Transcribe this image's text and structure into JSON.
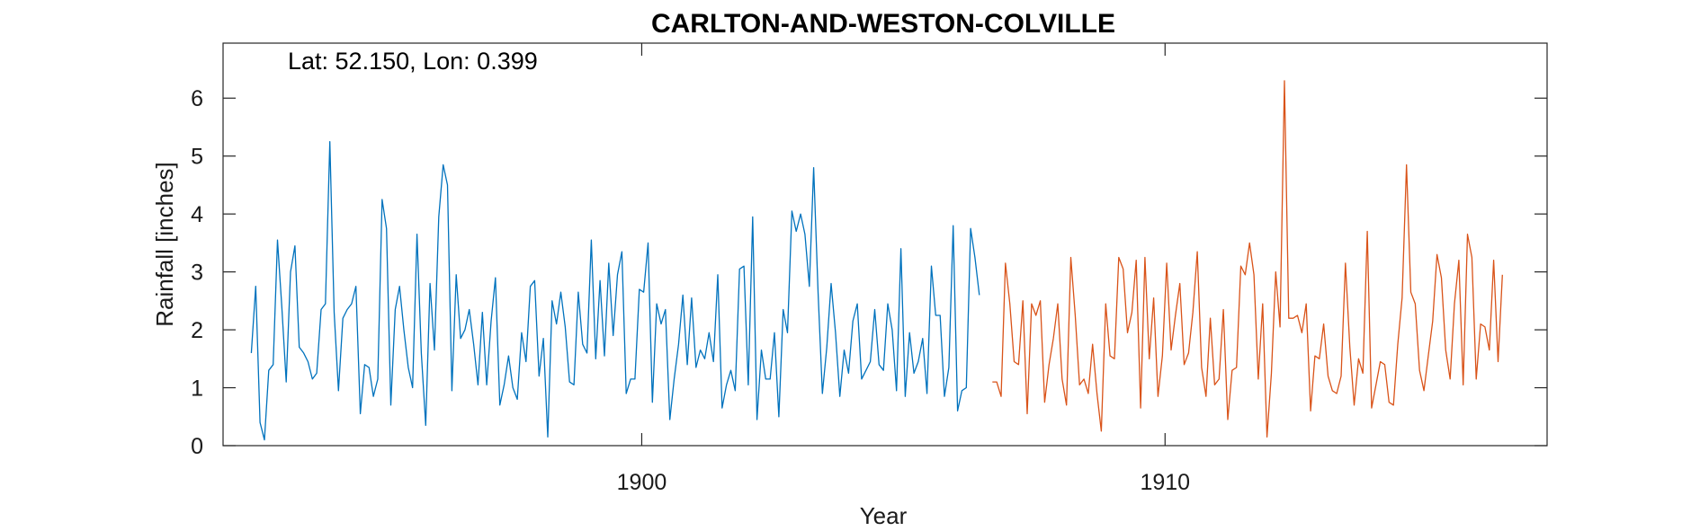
{
  "chart_data": {
    "type": "line",
    "title": "CARLTON-AND-WESTON-COLVILLE",
    "annotation": "Lat: 52.150, Lon: 0.399",
    "xlabel": "Year",
    "ylabel": "Rainfall [inches]",
    "xlim": [
      1892.0,
      1917.3
    ],
    "ylim": [
      0,
      6.95
    ],
    "xticks": [
      1900,
      1910
    ],
    "xtick_labels": [
      "1900",
      "1910"
    ],
    "yticks": [
      0,
      1,
      2,
      3,
      4,
      5,
      6
    ],
    "ytick_labels": [
      "0",
      "1",
      "2",
      "3",
      "4",
      "5",
      "6"
    ],
    "grid": false,
    "series": [
      {
        "color": "#0072bd",
        "x_start": 1892.54,
        "x_step": 0.0833,
        "values": [
          1.6,
          2.75,
          0.4,
          0.1,
          1.3,
          1.4,
          3.55,
          2.4,
          1.1,
          3.0,
          3.45,
          1.7,
          1.6,
          1.45,
          1.15,
          1.25,
          2.35,
          2.45,
          5.25,
          2.3,
          0.95,
          2.2,
          2.35,
          2.45,
          2.75,
          0.55,
          1.4,
          1.35,
          0.85,
          1.15,
          4.25,
          3.75,
          0.7,
          2.35,
          2.75,
          2.0,
          1.35,
          1.0,
          3.65,
          1.6,
          0.35,
          2.8,
          1.65,
          3.95,
          4.85,
          4.5,
          0.95,
          2.95,
          1.85,
          2.0,
          2.35,
          1.75,
          1.05,
          2.3,
          1.05,
          2.15,
          2.9,
          0.7,
          1.05,
          1.55,
          1.0,
          0.8,
          1.95,
          1.45,
          2.75,
          2.85,
          1.2,
          1.85,
          0.15,
          2.5,
          2.1,
          2.65,
          2.05,
          1.1,
          1.05,
          2.65,
          1.75,
          1.6,
          3.55,
          1.5,
          2.85,
          1.55,
          3.15,
          1.9,
          2.95,
          3.35,
          0.9,
          1.15,
          1.15,
          2.7,
          2.65,
          3.5,
          0.75,
          2.45,
          2.1,
          2.35,
          0.45,
          1.15,
          1.75,
          2.6,
          1.4,
          2.55,
          1.35,
          1.65,
          1.5,
          1.95,
          1.45,
          2.95,
          0.65,
          1.05,
          1.3,
          0.95,
          3.05,
          3.1,
          1.05,
          3.95,
          0.45,
          1.65,
          1.15,
          1.15,
          1.95,
          0.5,
          2.35,
          1.95,
          4.05,
          3.7,
          4.0,
          3.65,
          2.75,
          4.8,
          2.65,
          0.9,
          1.7,
          2.8,
          1.95,
          0.85,
          1.65,
          1.25,
          2.15,
          2.45,
          1.15,
          1.3,
          1.45,
          2.35,
          1.4,
          1.3,
          2.45,
          2.0,
          0.95,
          3.4,
          0.85,
          1.95,
          1.25,
          1.45,
          1.85,
          0.9,
          3.1,
          2.25,
          2.25,
          0.85,
          1.35,
          3.8,
          0.6,
          0.95,
          1.0,
          3.75,
          3.25,
          2.6
        ]
      },
      {
        "color": "#d95319",
        "x_start": 1906.7,
        "x_step": 0.0833,
        "values": [
          1.1,
          1.1,
          0.85,
          3.15,
          2.45,
          1.45,
          1.4,
          2.5,
          0.55,
          2.45,
          2.25,
          2.5,
          0.75,
          1.4,
          1.85,
          2.45,
          1.15,
          0.7,
          3.25,
          2.25,
          1.05,
          1.15,
          0.9,
          1.75,
          0.9,
          0.25,
          2.45,
          1.55,
          1.5,
          3.25,
          3.05,
          1.95,
          2.3,
          3.2,
          0.65,
          3.25,
          1.5,
          2.55,
          0.85,
          1.55,
          3.15,
          1.65,
          2.25,
          2.8,
          1.4,
          1.6,
          2.3,
          3.35,
          1.35,
          0.85,
          2.2,
          1.05,
          1.15,
          2.35,
          0.45,
          1.3,
          1.35,
          3.1,
          2.95,
          3.5,
          2.95,
          1.15,
          2.45,
          0.15,
          1.25,
          3.0,
          2.05,
          6.3,
          2.2,
          2.2,
          2.25,
          1.95,
          2.45,
          0.6,
          1.55,
          1.5,
          2.1,
          1.2,
          0.95,
          0.9,
          1.2,
          3.15,
          1.7,
          0.7,
          1.5,
          1.25,
          3.7,
          0.65,
          1.05,
          1.45,
          1.4,
          0.75,
          0.7,
          1.75,
          2.55,
          4.85,
          2.65,
          2.45,
          1.3,
          0.95,
          1.55,
          2.15,
          3.3,
          2.9,
          1.65,
          1.15,
          2.45,
          3.2,
          1.05,
          3.65,
          3.25,
          1.15,
          2.1,
          2.05,
          1.65,
          3.2,
          1.45,
          2.95
        ]
      }
    ]
  }
}
